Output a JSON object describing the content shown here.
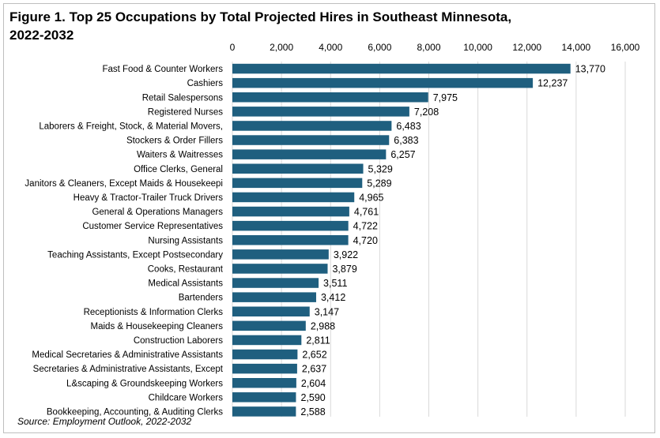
{
  "chart_data": {
    "type": "bar",
    "orientation": "horizontal",
    "title": "Figure 1. Top 25 Occupations by Total Projected Hires in Southeast Minnesota, 2022-2032",
    "source": "Source: Employment Outlook, 2022-2032",
    "xlim": [
      0,
      16000
    ],
    "x_ticks": [
      0,
      2000,
      4000,
      6000,
      8000,
      10000,
      12000,
      14000,
      16000
    ],
    "x_tick_labels": [
      "0",
      "2,000",
      "4,000",
      "6,000",
      "8,000",
      "10,000",
      "12,000",
      "14,000",
      "16,000"
    ],
    "axis_position": "top",
    "grid": true,
    "bar_color": "#1f5f7f",
    "categories": [
      "Fast Food & Counter Workers",
      "Cashiers",
      "Retail Salespersons",
      "Registered Nurses",
      "Laborers & Freight, Stock, & Material Movers,",
      "Stockers & Order Fillers",
      "Waiters & Waitresses",
      "Office Clerks, General",
      "Janitors & Cleaners, Except Maids & Housekeepi",
      "Heavy & Tractor-Trailer Truck Drivers",
      "General & Operations Managers",
      "Customer Service Representatives",
      "Nursing Assistants",
      "Teaching Assistants, Except Postsecondary",
      "Cooks, Restaurant",
      "Medical Assistants",
      "Bartenders",
      "Receptionists & Information Clerks",
      "Maids & Housekeeping Cleaners",
      "Construction Laborers",
      "Medical Secretaries & Administrative Assistants",
      "Secretaries & Administrative Assistants, Except",
      "L&scaping & Groundskeeping Workers",
      "Childcare Workers",
      "Bookkeeping, Accounting, & Auditing Clerks"
    ],
    "values": [
      13770,
      12237,
      7975,
      7208,
      6483,
      6383,
      6257,
      5329,
      5289,
      4965,
      4761,
      4722,
      4720,
      3922,
      3879,
      3511,
      3412,
      3147,
      2988,
      2811,
      2652,
      2637,
      2604,
      2590,
      2588
    ],
    "value_labels": [
      "13,770",
      "12,237",
      "7,975",
      "7,208",
      "6,483",
      "6,383",
      "6,257",
      "5,329",
      "5,289",
      "4,965",
      "4,761",
      "4,722",
      "4,720",
      "3,922",
      "3,879",
      "3,511",
      "3,412",
      "3,147",
      "2,988",
      "2,811",
      "2,652",
      "2,637",
      "2,604",
      "2,590",
      "2,588"
    ]
  }
}
